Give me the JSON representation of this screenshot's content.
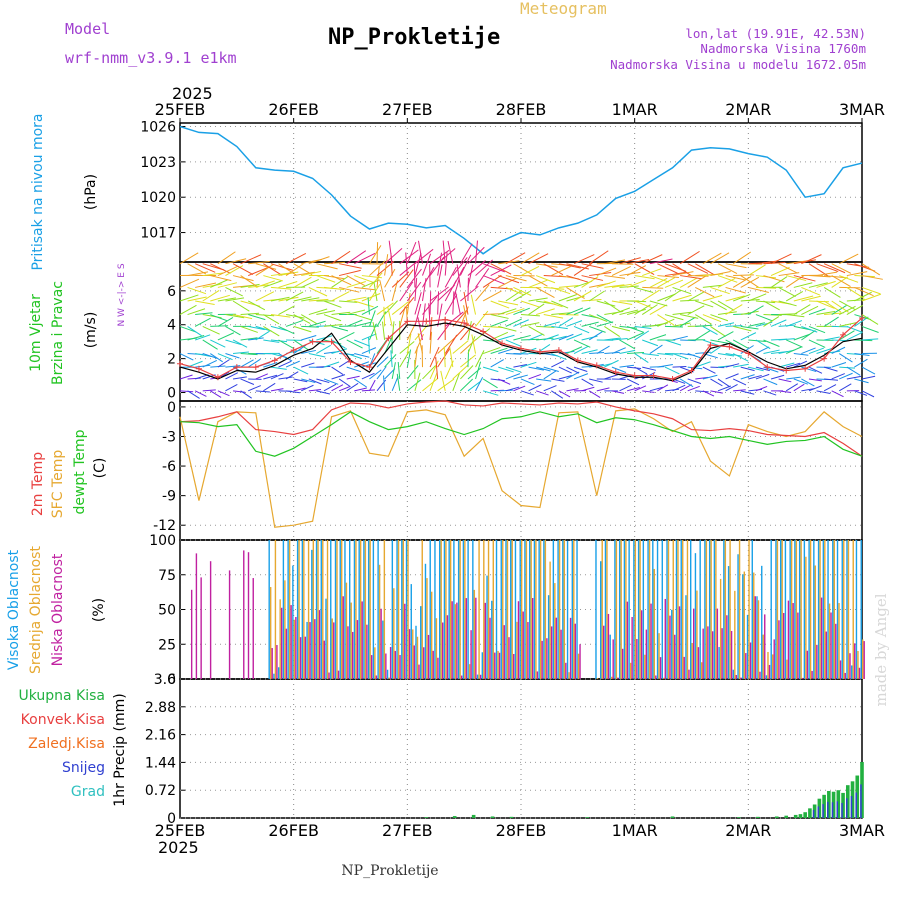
{
  "header": {
    "model_label": "Model",
    "model_name": "wrf-nmm_v3.9.1  e1km",
    "product": "Meteogram",
    "station": "NP_Prokletije",
    "lonlat": "lon,lat (19.91E, 42.53N)",
    "altitude": "Nadmorska Visina 1760m",
    "model_altitude": "Nadmorska Visina u modelu 1672.05m",
    "footer_station": "NP_Prokletije",
    "watermark": "made by Angel"
  },
  "colors": {
    "pressure": "#1aa0e6",
    "temp2m": "#e84040",
    "sfc_temp": "#e6a830",
    "dewpoint": "#22c422",
    "high_cloud": "#18a0e8",
    "mid_cloud": "#e6a830",
    "low_cloud": "#c020a0",
    "total_precip": "#22b040",
    "conv_precip": "#e84040",
    "freezing_precip": "#f07020",
    "snow": "#3040d0",
    "graupel": "#30c0c0",
    "title_purple": "#a040d0"
  },
  "time_axis": {
    "year": "2025",
    "labels": [
      "25FEB",
      "26FEB",
      "27FEB",
      "28FEB",
      "1MAR",
      "2MAR",
      "3MAR"
    ]
  },
  "chart_data": [
    {
      "type": "line",
      "name": "pressure",
      "ylabel": "Pritisak na nivou mora",
      "unit": "(hPa)",
      "ylim": [
        1014.5,
        1026.3
      ],
      "yticks": [
        "1026",
        "1023",
        "1020",
        "1017"
      ],
      "x": [
        0,
        4,
        8,
        12,
        16,
        20,
        24,
        28,
        32,
        36,
        40,
        44,
        48,
        52,
        56,
        60,
        64,
        68,
        72,
        76,
        80,
        84,
        88,
        92,
        96,
        100,
        104,
        108,
        112,
        116,
        120,
        124,
        128,
        132,
        136,
        140,
        144
      ],
      "values": [
        1026,
        1025.5,
        1025.4,
        1024.3,
        1022.5,
        1022.3,
        1022.2,
        1021.6,
        1020.2,
        1018.4,
        1017.3,
        1017.8,
        1017.7,
        1017.4,
        1017.6,
        1016.5,
        1015.2,
        1016.3,
        1017,
        1016.8,
        1017.4,
        1017.8,
        1018.5,
        1019.9,
        1020.5,
        1021.5,
        1022.5,
        1024,
        1024.2,
        1024.1,
        1023.7,
        1023.4,
        1022.3,
        1020,
        1020.3,
        1022.5,
        1022.9
      ]
    },
    {
      "type": "line",
      "name": "wind",
      "ylabel": "10m Vjetar",
      "ylabel2": "Brzina i Pravac",
      "unit": "(m/s)",
      "compass": "N  W <-|-> E  S",
      "ylim": [
        -0.5,
        7.7
      ],
      "yticks": [
        "0",
        "2",
        "4",
        "6"
      ],
      "x": [
        0,
        4,
        8,
        12,
        16,
        20,
        24,
        28,
        32,
        36,
        40,
        44,
        48,
        52,
        56,
        60,
        64,
        68,
        72,
        76,
        80,
        84,
        88,
        92,
        96,
        100,
        104,
        108,
        112,
        116,
        120,
        124,
        128,
        132,
        136,
        140,
        144
      ],
      "speed": [
        1.5,
        1.2,
        0.8,
        1.3,
        1.2,
        1.6,
        2.2,
        2.6,
        3.5,
        1.9,
        1.2,
        2.6,
        4.0,
        3.9,
        4.1,
        3.9,
        3.4,
        2.8,
        2.5,
        2.3,
        2.4,
        1.8,
        1.5,
        1.1,
        0.9,
        0.9,
        0.7,
        1.2,
        2.6,
        2.9,
        2.4,
        1.8,
        1.4,
        1.6,
        2.2,
        3.0,
        3.2
      ],
      "gust": [
        1.7,
        1.4,
        0.9,
        1.5,
        1.5,
        1.9,
        2.5,
        3.0,
        3.0,
        1.8,
        1.5,
        3.2,
        4.2,
        4.2,
        4.3,
        4.1,
        3.6,
        2.9,
        2.6,
        2.4,
        2.5,
        1.9,
        1.6,
        1.2,
        1.0,
        1.0,
        0.8,
        1.3,
        2.8,
        2.7,
        2.3,
        1.5,
        1.3,
        1.4,
        2.0,
        3.4,
        4.4
      ]
    },
    {
      "type": "line",
      "name": "temperature",
      "ylabel": "2m Temp",
      "ylabel2": "SFC Temp",
      "ylabel3": "dewpt Temp",
      "unit": "(C)",
      "ylim": [
        -13.5,
        0.6
      ],
      "yticks": [
        "0",
        "-3",
        "-6",
        "-9",
        "-12"
      ],
      "x": [
        0,
        4,
        8,
        12,
        16,
        20,
        24,
        28,
        32,
        36,
        40,
        44,
        48,
        52,
        56,
        60,
        64,
        68,
        72,
        76,
        80,
        84,
        88,
        92,
        96,
        100,
        104,
        108,
        112,
        116,
        120,
        124,
        128,
        132,
        136,
        140,
        144
      ],
      "t2m": [
        -1.5,
        -1.4,
        -1.0,
        -0.5,
        -2.3,
        -2.5,
        -2.8,
        -2.3,
        -0.3,
        0.4,
        0.3,
        -0.1,
        0.3,
        0.5,
        0.6,
        0.2,
        0.1,
        0.4,
        0.3,
        0.2,
        0.4,
        0.3,
        0.5,
        0.0,
        -0.4,
        -0.7,
        -1.2,
        -2.3,
        -2.4,
        -2.2,
        -2.4,
        -2.8,
        -2.9,
        -3.0,
        -2.6,
        -3.7,
        -5.0
      ],
      "sfc": [
        -1.0,
        -9.5,
        -1.5,
        -0.5,
        -0.6,
        -12.2,
        -12.0,
        -11.6,
        -1.0,
        -0.4,
        -4.7,
        -5.0,
        -0.5,
        -0.3,
        -0.8,
        -5.0,
        -3.2,
        -8.5,
        -10.0,
        -10.2,
        -0.6,
        -0.5,
        -9.0,
        -0.4,
        -0.2,
        -1.2,
        -2.5,
        -1.5,
        -5.5,
        -7.0,
        -1.8,
        -2.5,
        -3.0,
        -2.5,
        -0.5,
        -2.0,
        -3.0
      ],
      "dew": [
        -1.5,
        -1.6,
        -2.0,
        -1.8,
        -4.5,
        -5.0,
        -4.2,
        -3.0,
        -1.8,
        -0.5,
        -1.5,
        -2.3,
        -2.0,
        -1.5,
        -2.2,
        -2.8,
        -2.2,
        -1.2,
        -1.0,
        -0.5,
        -1.0,
        -0.7,
        -1.6,
        -1.1,
        -1.3,
        -1.8,
        -2.4,
        -3.0,
        -3.2,
        -3.0,
        -3.4,
        -3.8,
        -3.5,
        -3.4,
        -3.0,
        -4.3,
        -5.0
      ]
    },
    {
      "type": "bar",
      "name": "cloud_cover",
      "ylabel": "Visoka Oblacnost",
      "ylabel2": "Srednja Oblacnost",
      "ylabel3": "Niska Oblacnost",
      "unit": "(%)",
      "ylim": [
        0,
        100
      ],
      "yticks": [
        "0",
        "25",
        "50",
        "75",
        "100"
      ]
    },
    {
      "type": "bar",
      "name": "precipitation",
      "legend": [
        "Ukupna Kisa",
        "Konvek.Kisa",
        "Zaledj.Kisa",
        "Snijeg",
        "Grad"
      ],
      "ylabel": "1hr Precip (mm)",
      "ylim": [
        0,
        3.6
      ],
      "yticks": [
        "0",
        "0.72",
        "1.44",
        "2.16",
        "2.88",
        "3.6"
      ],
      "x": [
        52,
        58,
        62,
        66,
        70,
        86,
        104,
        118,
        122,
        126,
        128,
        130,
        131,
        132,
        133,
        134,
        135,
        136,
        137,
        138,
        139,
        140,
        141,
        142,
        143,
        144
      ],
      "values": [
        0.02,
        0.05,
        0.08,
        0.04,
        0.03,
        0.02,
        0.04,
        0.02,
        0.03,
        0.04,
        0.06,
        0.08,
        0.1,
        0.15,
        0.25,
        0.35,
        0.5,
        0.6,
        0.7,
        0.68,
        0.72,
        0.65,
        0.85,
        0.95,
        1.1,
        1.45
      ]
    }
  ]
}
